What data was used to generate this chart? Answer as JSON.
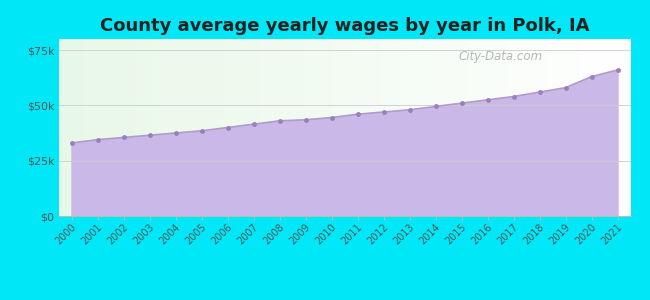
{
  "title": "County average yearly wages by year in Polk, IA",
  "years": [
    2000,
    2001,
    2002,
    2003,
    2004,
    2005,
    2006,
    2007,
    2008,
    2009,
    2010,
    2011,
    2012,
    2013,
    2014,
    2015,
    2016,
    2017,
    2018,
    2019,
    2020,
    2021
  ],
  "wages": [
    33000,
    34500,
    35500,
    36500,
    37500,
    38500,
    40000,
    41500,
    43000,
    43500,
    44500,
    46000,
    47000,
    48000,
    49500,
    51000,
    52500,
    54000,
    56000,
    58000,
    63000,
    66000
  ],
  "ylim": [
    0,
    80000
  ],
  "yticks": [
    0,
    25000,
    50000,
    75000
  ],
  "ytick_labels": [
    "$0",
    "$25k",
    "$50k",
    "$75k"
  ],
  "fill_color": "#c9b8e8",
  "line_color": "#b09ccc",
  "marker_color": "#9980bb",
  "bg_outer": "#00e8f8",
  "bg_plot_topleft": [
    232,
    248,
    232
  ],
  "bg_plot_topright": [
    255,
    255,
    255
  ],
  "bg_plot_bottomleft": [
    232,
    248,
    232
  ],
  "bg_plot_bottomright": [
    255,
    255,
    255
  ],
  "title_fontsize": 13,
  "title_color": "#222222",
  "watermark": "City-Data.com"
}
